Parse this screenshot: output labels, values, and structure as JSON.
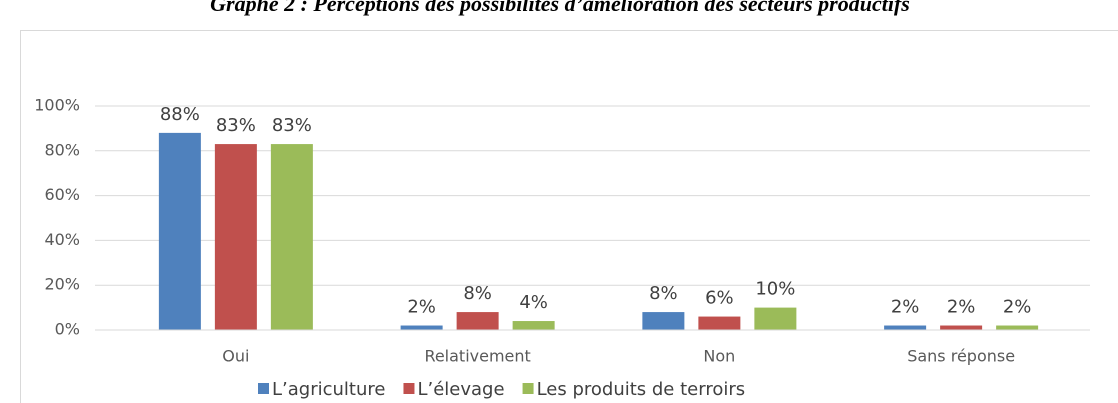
{
  "chart_data": {
    "type": "bar",
    "title": "Graphe 2 : Perceptions des possibilités d’amélioration des secteurs productifs",
    "categories": [
      "Oui",
      "Relativement",
      "Non",
      "Sans réponse"
    ],
    "series": [
      {
        "name": "L’agriculture",
        "color": "#4f81bd",
        "values": [
          88,
          2,
          8,
          2
        ],
        "value_labels": [
          "88%",
          "2%",
          "8%",
          "2%"
        ]
      },
      {
        "name": "L’élevage",
        "color": "#c0504d",
        "values": [
          83,
          8,
          6,
          2
        ],
        "value_labels": [
          "83%",
          "8%",
          "6%",
          "2%"
        ]
      },
      {
        "name": "Les produits de terroirs",
        "color": "#9bbb59",
        "values": [
          83,
          4,
          10,
          2
        ],
        "value_labels": [
          "83%",
          "4%",
          "10%",
          "2%"
        ]
      }
    ],
    "ylim": [
      0,
      100
    ],
    "yticks": [
      {
        "value": 0,
        "label": "0%"
      },
      {
        "value": 20,
        "label": "20%"
      },
      {
        "value": 40,
        "label": "40%"
      },
      {
        "value": 60,
        "label": "60%"
      },
      {
        "value": 80,
        "label": "80%"
      },
      {
        "value": 100,
        "label": "100%"
      }
    ],
    "grid": true,
    "legend": "bottom"
  }
}
